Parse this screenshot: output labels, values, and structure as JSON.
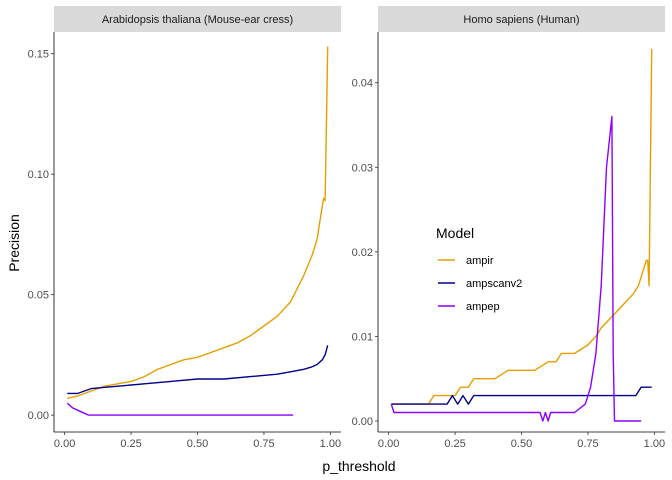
{
  "chart_data": {
    "type": "line",
    "xlabel": "p_threshold",
    "ylabel": "Precision",
    "legend": {
      "title": "Model",
      "placement": "inside-right-panel",
      "entries": [
        {
          "name": "ampir",
          "color": "#E69F00"
        },
        {
          "name": "ampscanv2",
          "color": "#00008B"
        },
        {
          "name": "ampep",
          "color": "#8B00FF"
        }
      ]
    },
    "x_ticks": [
      0.0,
      0.25,
      0.5,
      0.75,
      1.0
    ],
    "x_tick_labels": [
      "0.00",
      "0.25",
      "0.50",
      "0.75",
      "1.00"
    ],
    "grid": false,
    "panels": [
      {
        "strip": "Arabidopsis thaliana (Mouse-ear cress)",
        "xlim": [
          -0.04,
          1.04
        ],
        "ylim": [
          -0.007,
          0.159
        ],
        "y_ticks": [
          0.0,
          0.05,
          0.1,
          0.15
        ],
        "y_tick_labels": [
          "0.00",
          "0.05",
          "0.10",
          "0.15"
        ],
        "series": [
          {
            "name": "ampir",
            "x": [
              0.01,
              0.05,
              0.1,
              0.15,
              0.2,
              0.25,
              0.3,
              0.35,
              0.4,
              0.45,
              0.5,
              0.55,
              0.6,
              0.65,
              0.7,
              0.75,
              0.8,
              0.85,
              0.9,
              0.93,
              0.95,
              0.96,
              0.97,
              0.975,
              0.98,
              0.985,
              0.99
            ],
            "y": [
              0.007,
              0.008,
              0.01,
              0.012,
              0.013,
              0.014,
              0.016,
              0.019,
              0.021,
              0.023,
              0.024,
              0.026,
              0.028,
              0.03,
              0.033,
              0.037,
              0.041,
              0.047,
              0.058,
              0.066,
              0.073,
              0.08,
              0.087,
              0.09,
              0.089,
              0.12,
              0.153
            ]
          },
          {
            "name": "ampscanv2",
            "x": [
              0.01,
              0.05,
              0.1,
              0.2,
              0.3,
              0.4,
              0.5,
              0.6,
              0.7,
              0.8,
              0.85,
              0.9,
              0.93,
              0.95,
              0.97,
              0.98,
              0.99
            ],
            "y": [
              0.009,
              0.009,
              0.011,
              0.012,
              0.013,
              0.014,
              0.015,
              0.015,
              0.016,
              0.017,
              0.018,
              0.019,
              0.02,
              0.021,
              0.023,
              0.025,
              0.029
            ]
          },
          {
            "name": "ampep",
            "x": [
              0.01,
              0.02,
              0.03,
              0.05,
              0.07,
              0.09,
              0.2,
              0.4,
              0.6,
              0.8,
              0.86
            ],
            "y": [
              0.005,
              0.004,
              0.003,
              0.002,
              0.001,
              0.0,
              0.0,
              0.0,
              0.0,
              0.0,
              0.0
            ]
          }
        ]
      },
      {
        "strip": "Homo sapiens (Human)",
        "xlim": [
          -0.04,
          1.04
        ],
        "ylim": [
          -0.0013,
          0.046
        ],
        "y_ticks": [
          0.0,
          0.01,
          0.02,
          0.03,
          0.04
        ],
        "y_tick_labels": [
          "0.00",
          "0.01",
          "0.02",
          "0.03",
          "0.04"
        ],
        "series": [
          {
            "name": "ampir",
            "x": [
              0.01,
              0.1,
              0.15,
              0.17,
              0.25,
              0.27,
              0.3,
              0.32,
              0.35,
              0.4,
              0.45,
              0.5,
              0.52,
              0.55,
              0.6,
              0.63,
              0.65,
              0.7,
              0.75,
              0.78,
              0.8,
              0.83,
              0.86,
              0.89,
              0.92,
              0.94,
              0.95,
              0.96,
              0.97,
              0.975,
              0.98,
              0.985,
              0.99
            ],
            "y": [
              0.002,
              0.002,
              0.002,
              0.003,
              0.003,
              0.004,
              0.004,
              0.005,
              0.005,
              0.005,
              0.006,
              0.006,
              0.006,
              0.006,
              0.007,
              0.007,
              0.008,
              0.008,
              0.009,
              0.01,
              0.011,
              0.012,
              0.013,
              0.014,
              0.015,
              0.016,
              0.017,
              0.018,
              0.019,
              0.019,
              0.016,
              0.03,
              0.044
            ]
          },
          {
            "name": "ampscanv2",
            "x": [
              0.01,
              0.22,
              0.24,
              0.26,
              0.28,
              0.3,
              0.32,
              0.6,
              0.93,
              0.95,
              0.97,
              0.99
            ],
            "y": [
              0.002,
              0.002,
              0.003,
              0.002,
              0.003,
              0.002,
              0.003,
              0.003,
              0.003,
              0.004,
              0.004,
              0.004
            ]
          },
          {
            "name": "ampep",
            "x": [
              0.01,
              0.02,
              0.57,
              0.58,
              0.59,
              0.6,
              0.61,
              0.62,
              0.7,
              0.74,
              0.76,
              0.78,
              0.8,
              0.82,
              0.84,
              0.845,
              0.85,
              0.95
            ],
            "y": [
              0.002,
              0.001,
              0.001,
              0.0,
              0.001,
              0.0,
              0.001,
              0.001,
              0.001,
              0.002,
              0.004,
              0.008,
              0.016,
              0.03,
              0.036,
              0.008,
              0.0,
              0.0
            ]
          }
        ]
      }
    ]
  }
}
